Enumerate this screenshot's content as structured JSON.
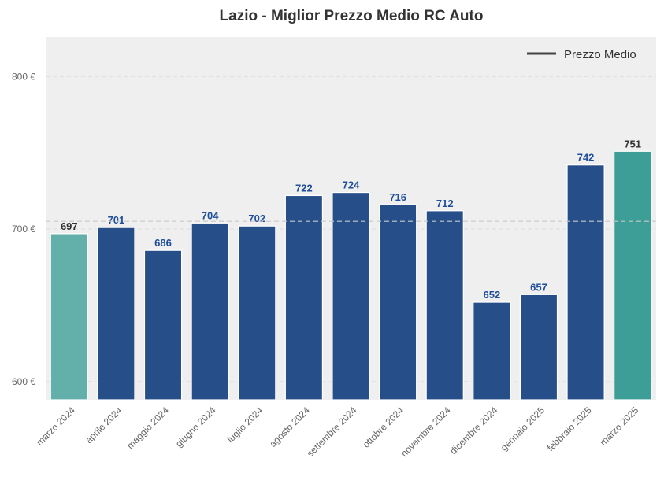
{
  "chart_data": {
    "type": "bar",
    "title": "Lazio - Miglior Prezzo Medio RC Auto",
    "xlabel": "",
    "ylabel": "",
    "ylim": [
      588,
      826
    ],
    "yticks": [
      600,
      700,
      800
    ],
    "ytick_labels": [
      "600 €",
      "700 €",
      "800 €"
    ],
    "grid": true,
    "categories": [
      "marzo 2024",
      "aprile 2024",
      "maggio 2024",
      "giugno 2024",
      "luglio 2024",
      "agosto 2024",
      "settembre 2024",
      "ottobre 2024",
      "novembre 2024",
      "dicembre 2024",
      "gennaio 2025",
      "febbraio 2025",
      "marzo 2025"
    ],
    "values": [
      697,
      701,
      686,
      704,
      702,
      722,
      724,
      716,
      712,
      652,
      657,
      742,
      751
    ],
    "bar_colors": [
      "#63b0ab",
      "#264f8a",
      "#264f8a",
      "#264f8a",
      "#264f8a",
      "#264f8a",
      "#264f8a",
      "#264f8a",
      "#264f8a",
      "#264f8a",
      "#264f8a",
      "#264f8a",
      "#3d9e97"
    ],
    "label_colors": [
      "#333333",
      "#1f4e9a",
      "#1f4e9a",
      "#1f4e9a",
      "#1f4e9a",
      "#1f4e9a",
      "#1f4e9a",
      "#1f4e9a",
      "#1f4e9a",
      "#1f4e9a",
      "#1f4e9a",
      "#1f4e9a",
      "#333333"
    ],
    "mean_line": {
      "label": "Prezzo Medio",
      "value": 705.1
    },
    "legend_position": "top-right"
  }
}
